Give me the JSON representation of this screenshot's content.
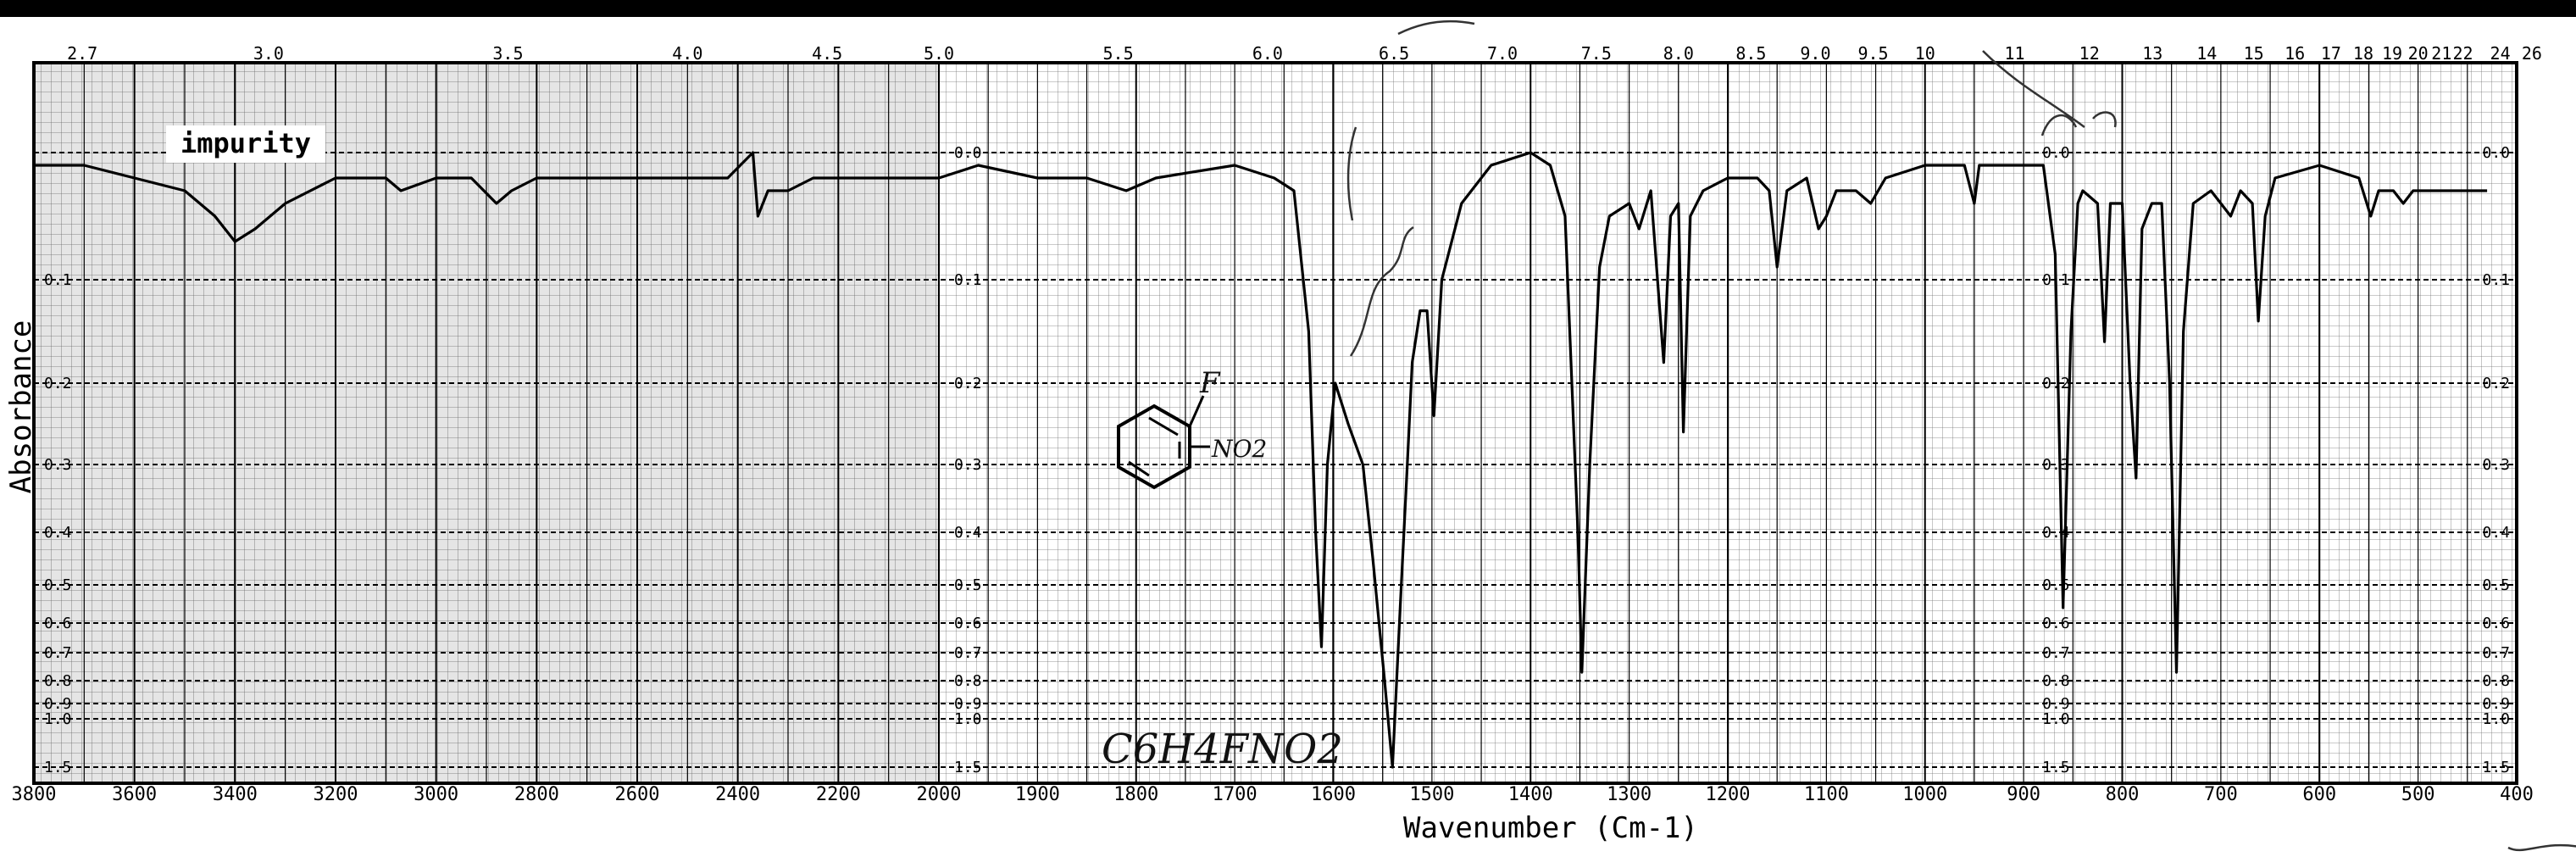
{
  "chart_data": {
    "type": "line",
    "title": "",
    "xlabel": "Wavenumber (Cm-1)",
    "ylabel": "Absorbance",
    "xlim": [
      3800,
      400
    ],
    "ylim": [
      0.0,
      1.5
    ],
    "x_ticks_bottom": [
      "3800",
      "3600",
      "3400",
      "3200",
      "3000",
      "2800",
      "2600",
      "2400",
      "2200",
      "2000",
      "1900",
      "1800",
      "1700",
      "1600",
      "1500",
      "1400",
      "1300",
      "1200",
      "1100",
      "1000",
      "900",
      "800",
      "700",
      "600",
      "500",
      "400"
    ],
    "x_ticks_top_micron": [
      "2.7",
      "3.0",
      "3.5",
      "4.0",
      "4.5",
      "5.0",
      "5.5",
      "6.0",
      "6.5",
      "7.0",
      "7.5",
      "8.0",
      "8.5",
      "9.0",
      "9.5",
      "10",
      "11",
      "12",
      "13",
      "14",
      "15",
      "16",
      "17",
      "18",
      "19",
      "20",
      "21",
      "22",
      "24",
      "26"
    ],
    "y_ticks": [
      "0.0",
      "0.1",
      "0.2",
      "0.3",
      "0.4",
      "0.5",
      "0.6",
      "0.7",
      "0.8",
      "0.9",
      "1.0",
      "1.5"
    ],
    "grid": true,
    "series": [
      {
        "points": [
          [
            3800,
            0.01
          ],
          [
            3700,
            0.01
          ],
          [
            3600,
            0.02
          ],
          [
            3500,
            0.03
          ],
          [
            3440,
            0.05
          ],
          [
            3400,
            0.07
          ],
          [
            3360,
            0.06
          ],
          [
            3300,
            0.04
          ],
          [
            3200,
            0.02
          ],
          [
            3100,
            0.02
          ],
          [
            3070,
            0.03
          ],
          [
            3000,
            0.02
          ],
          [
            2930,
            0.02
          ],
          [
            2880,
            0.04
          ],
          [
            2850,
            0.03
          ],
          [
            2800,
            0.02
          ],
          [
            2700,
            0.02
          ],
          [
            2600,
            0.02
          ],
          [
            2500,
            0.02
          ],
          [
            2420,
            0.02
          ],
          [
            2370,
            0.0
          ],
          [
            2360,
            0.05
          ],
          [
            2340,
            0.03
          ],
          [
            2300,
            0.03
          ],
          [
            2250,
            0.02
          ],
          [
            2200,
            0.02
          ],
          [
            2100,
            0.02
          ],
          [
            2000,
            0.02
          ],
          [
            1960,
            0.01
          ],
          [
            1900,
            0.02
          ],
          [
            1850,
            0.02
          ],
          [
            1810,
            0.03
          ],
          [
            1780,
            0.02
          ],
          [
            1700,
            0.01
          ],
          [
            1660,
            0.02
          ],
          [
            1640,
            0.03
          ],
          [
            1625,
            0.15
          ],
          [
            1618,
            0.4
          ],
          [
            1612,
            0.68
          ],
          [
            1606,
            0.3
          ],
          [
            1598,
            0.2
          ],
          [
            1585,
            0.25
          ],
          [
            1570,
            0.3
          ],
          [
            1560,
            0.45
          ],
          [
            1548,
            0.8
          ],
          [
            1540,
            1.5
          ],
          [
            1532,
            0.55
          ],
          [
            1525,
            0.3
          ],
          [
            1520,
            0.18
          ],
          [
            1512,
            0.13
          ],
          [
            1505,
            0.13
          ],
          [
            1498,
            0.24
          ],
          [
            1490,
            0.1
          ],
          [
            1470,
            0.04
          ],
          [
            1440,
            0.01
          ],
          [
            1400,
            0.0
          ],
          [
            1380,
            0.01
          ],
          [
            1365,
            0.05
          ],
          [
            1352,
            0.4
          ],
          [
            1348,
            0.77
          ],
          [
            1340,
            0.3
          ],
          [
            1330,
            0.09
          ],
          [
            1320,
            0.05
          ],
          [
            1300,
            0.04
          ],
          [
            1290,
            0.06
          ],
          [
            1278,
            0.03
          ],
          [
            1265,
            0.18
          ],
          [
            1258,
            0.05
          ],
          [
            1250,
            0.04
          ],
          [
            1245,
            0.26
          ],
          [
            1238,
            0.05
          ],
          [
            1225,
            0.03
          ],
          [
            1200,
            0.02
          ],
          [
            1170,
            0.02
          ],
          [
            1158,
            0.03
          ],
          [
            1150,
            0.09
          ],
          [
            1140,
            0.03
          ],
          [
            1120,
            0.02
          ],
          [
            1108,
            0.06
          ],
          [
            1100,
            0.05
          ],
          [
            1090,
            0.03
          ],
          [
            1070,
            0.03
          ],
          [
            1055,
            0.04
          ],
          [
            1040,
            0.02
          ],
          [
            1000,
            0.01
          ],
          [
            960,
            0.01
          ],
          [
            950,
            0.04
          ],
          [
            945,
            0.01
          ],
          [
            900,
            0.01
          ],
          [
            880,
            0.01
          ],
          [
            868,
            0.08
          ],
          [
            860,
            0.56
          ],
          [
            852,
            0.15
          ],
          [
            845,
            0.04
          ],
          [
            840,
            0.03
          ],
          [
            825,
            0.04
          ],
          [
            818,
            0.16
          ],
          [
            812,
            0.04
          ],
          [
            800,
            0.04
          ],
          [
            792,
            0.2
          ],
          [
            786,
            0.32
          ],
          [
            780,
            0.06
          ],
          [
            770,
            0.04
          ],
          [
            760,
            0.04
          ],
          [
            752,
            0.2
          ],
          [
            745,
            0.77
          ],
          [
            738,
            0.15
          ],
          [
            728,
            0.04
          ],
          [
            710,
            0.03
          ],
          [
            700,
            0.04
          ],
          [
            690,
            0.05
          ],
          [
            680,
            0.03
          ],
          [
            668,
            0.04
          ],
          [
            662,
            0.14
          ],
          [
            655,
            0.05
          ],
          [
            645,
            0.02
          ],
          [
            600,
            0.01
          ],
          [
            560,
            0.02
          ],
          [
            548,
            0.05
          ],
          [
            540,
            0.03
          ],
          [
            525,
            0.03
          ],
          [
            515,
            0.04
          ],
          [
            505,
            0.03
          ],
          [
            480,
            0.03
          ],
          [
            430,
            0.03
          ]
        ]
      }
    ],
    "annotations": [
      {
        "text": "impurity",
        "x": 3400,
        "y": 0.0
      }
    ]
  },
  "handwriting": {
    "formula": "C6H4FNO2",
    "substituent_f": "F",
    "substituent_no2": "NO2"
  }
}
